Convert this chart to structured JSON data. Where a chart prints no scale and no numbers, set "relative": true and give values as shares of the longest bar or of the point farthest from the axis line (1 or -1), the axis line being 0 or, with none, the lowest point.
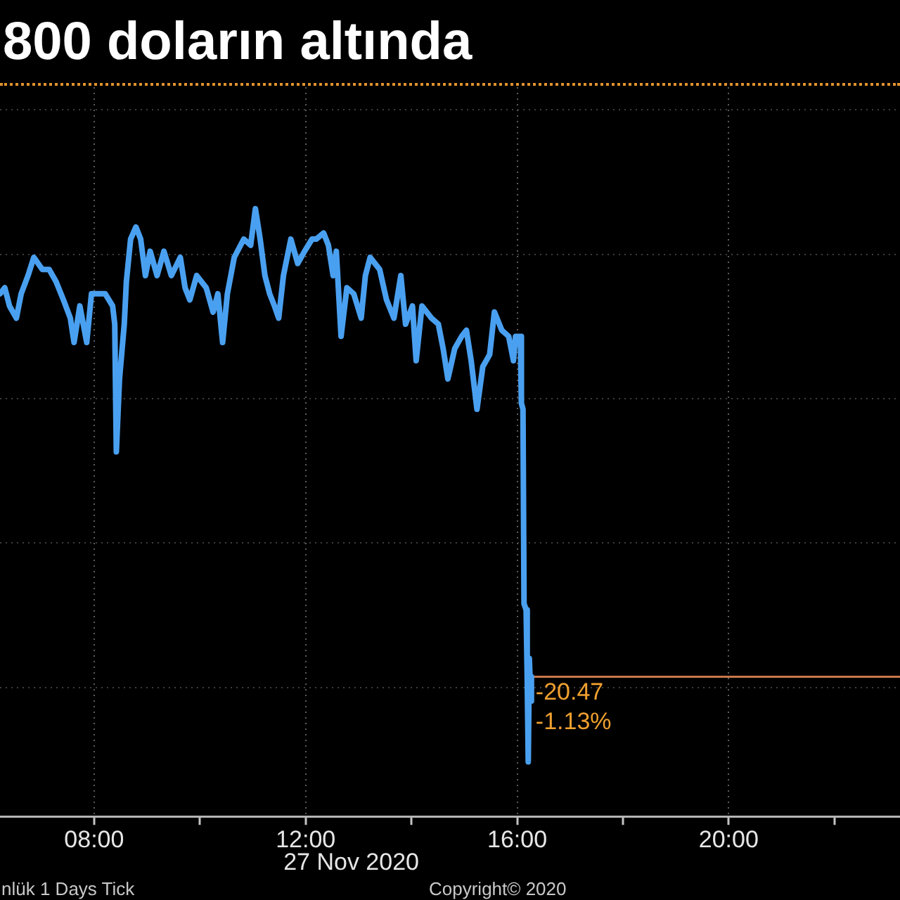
{
  "chart_data": {
    "type": "line",
    "title": "800 doların altında",
    "xlabel": "27 Nov 2020",
    "relative": true,
    "x": [
      6.22,
      6.31,
      6.4,
      6.53,
      6.62,
      6.75,
      6.86,
      7.02,
      7.15,
      7.28,
      7.42,
      7.55,
      7.62,
      7.73,
      7.86,
      7.95,
      8.08,
      8.21,
      8.35,
      8.39,
      8.42,
      8.48,
      8.57,
      8.61,
      8.69,
      8.79,
      8.88,
      8.97,
      9.06,
      9.19,
      9.32,
      9.46,
      9.63,
      9.72,
      9.81,
      9.94,
      10.12,
      10.25,
      10.34,
      10.43,
      10.52,
      10.65,
      10.83,
      10.96,
      11.05,
      11.14,
      11.23,
      11.32,
      11.41,
      11.49,
      11.58,
      11.72,
      11.85,
      11.98,
      12.12,
      12.2,
      12.34,
      12.43,
      12.52,
      12.58,
      12.67,
      12.78,
      12.91,
      13.05,
      13.13,
      13.22,
      13.4,
      13.53,
      13.67,
      13.8,
      13.89,
      14.02,
      14.09,
      14.2,
      14.38,
      14.51,
      14.6,
      14.69,
      14.82,
      14.95,
      15.04,
      15.13,
      15.24,
      15.35,
      15.48,
      15.57,
      15.71,
      15.84,
      15.93,
      15.97,
      16.06,
      16.08,
      16.11,
      16.13,
      16.17,
      16.19,
      16.21,
      16.23,
      16.26,
      16.27
    ],
    "series": [
      {
        "color": "#4aa0f0",
        "values": [
          0.86,
          0.87,
          0.84,
          0.82,
          0.86,
          0.89,
          0.92,
          0.9,
          0.9,
          0.88,
          0.85,
          0.82,
          0.78,
          0.84,
          0.78,
          0.86,
          0.86,
          0.86,
          0.84,
          0.81,
          0.6,
          0.72,
          0.81,
          0.88,
          0.95,
          0.97,
          0.95,
          0.89,
          0.93,
          0.89,
          0.93,
          0.89,
          0.92,
          0.87,
          0.85,
          0.89,
          0.87,
          0.83,
          0.86,
          0.78,
          0.86,
          0.92,
          0.95,
          0.94,
          1.0,
          0.95,
          0.89,
          0.86,
          0.84,
          0.82,
          0.89,
          0.95,
          0.91,
          0.93,
          0.95,
          0.95,
          0.96,
          0.94,
          0.89,
          0.93,
          0.79,
          0.87,
          0.86,
          0.82,
          0.89,
          0.92,
          0.9,
          0.85,
          0.82,
          0.89,
          0.81,
          0.84,
          0.75,
          0.84,
          0.82,
          0.81,
          0.77,
          0.72,
          0.77,
          0.79,
          0.8,
          0.75,
          0.67,
          0.74,
          0.76,
          0.83,
          0.8,
          0.79,
          0.75,
          0.79,
          0.79,
          0.68,
          0.67,
          0.35,
          0.34,
          0.23,
          0.09,
          0.26,
          0.19,
          0.23
        ]
      }
    ],
    "xlim": [
      6.22,
      23.24
    ],
    "xticks": [
      {
        "value": 8,
        "label": "08:00"
      },
      {
        "value": 10,
        "label": null
      },
      {
        "value": 12,
        "label": "12:00"
      },
      {
        "value": 14,
        "label": null
      },
      {
        "value": 16,
        "label": "16:00"
      },
      {
        "value": 18,
        "label": null
      },
      {
        "value": 20,
        "label": "20:00"
      },
      {
        "value": 22,
        "label": null
      }
    ],
    "grid": true,
    "ref_lines": [
      {
        "axis": "y",
        "value": 0.23,
        "color": "#c8784a"
      }
    ],
    "annotations": [
      {
        "text": "-20.47",
        "x": 16.27,
        "y": 0.23
      },
      {
        "text": "-1.13%",
        "x": 16.27,
        "y": 0.23
      },
      "nlük 1 Days Tick",
      "Copyright© 2020"
    ]
  }
}
